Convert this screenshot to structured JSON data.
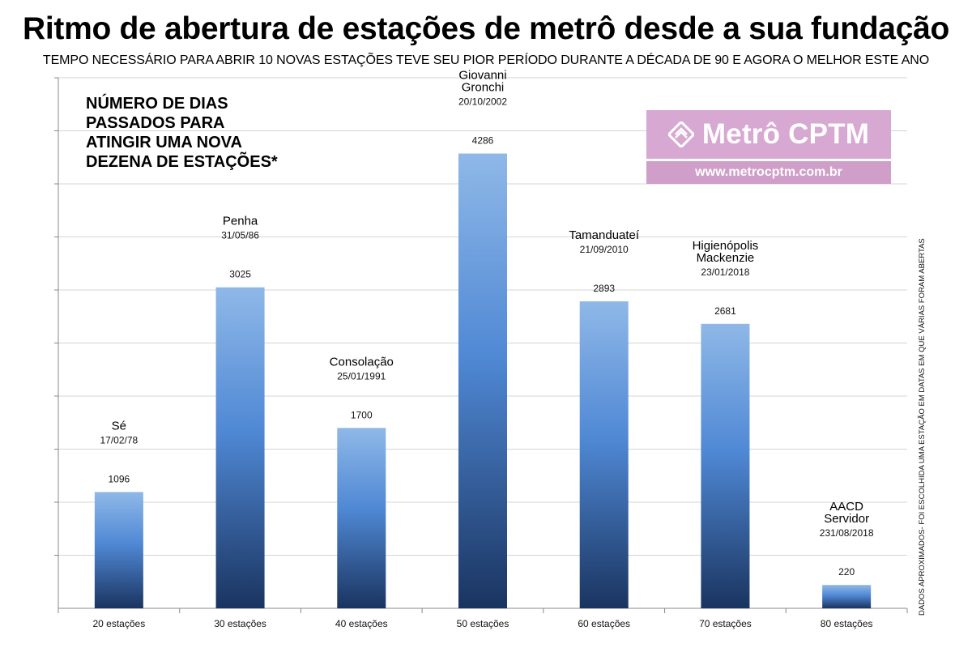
{
  "title": "Ritmo de abertura de estações de metrô desde a sua fundação",
  "subtitle": "TEMPO NECESSÁRIO PARA ABRIR 10 NOVAS ESTAÇÕES TEVE SEU PIOR PERÍODO DURANTE A DÉCADA DE 90 E AGORA O MELHOR ESTE ANO",
  "annotation": "NÚMERO DE DIAS PASSADOS PARA ATINGIR UMA NOVA DEZENA DE ESTAÇÕES*",
  "side_note": "DADOS APROXIMADOS- FOI ESCOLHIDA UMA ESTAÇÃO EM DATAS EM QUE VÁRIAS FORAM ABERTAS",
  "logo": {
    "name": "Metrô CPTM",
    "url": "www.metrocptm.com.br"
  },
  "colors": {
    "bar_top": "#8fb8e8",
    "bar_mid": "#4f88d4",
    "bar_bottom": "#1a3460",
    "grid": "#d4d4d4",
    "logo_bg": "#d7a8d1"
  },
  "chart_data": {
    "type": "bar",
    "categories": [
      "20  estações",
      "30 estações",
      "40 estações",
      "50 estações",
      "60 estações",
      "70 estações",
      "80 estações"
    ],
    "values": [
      1096,
      3025,
      1700,
      4286,
      2893,
      2681,
      220
    ],
    "data_labels": [
      "1096",
      "3025",
      "1700",
      "4286",
      "2893",
      "2681",
      "220"
    ],
    "station_names": [
      "Sé",
      "Penha",
      "Consolação",
      "Giovanni\nGronchi",
      "Tamanduateí",
      "Higienópolis\nMackenzie",
      "AACD\nServidor"
    ],
    "station_dates": [
      "17/02/78",
      "31/05/86",
      "25/01/1991",
      "20/10/2002",
      "21/09/2010",
      "23/01/2018",
      "231/08/2018"
    ],
    "ylim": [
      0,
      5000
    ],
    "y_tick_step": 500,
    "y_tick_labels_shown": false,
    "grid": true,
    "xlabel": "",
    "ylabel": ""
  }
}
